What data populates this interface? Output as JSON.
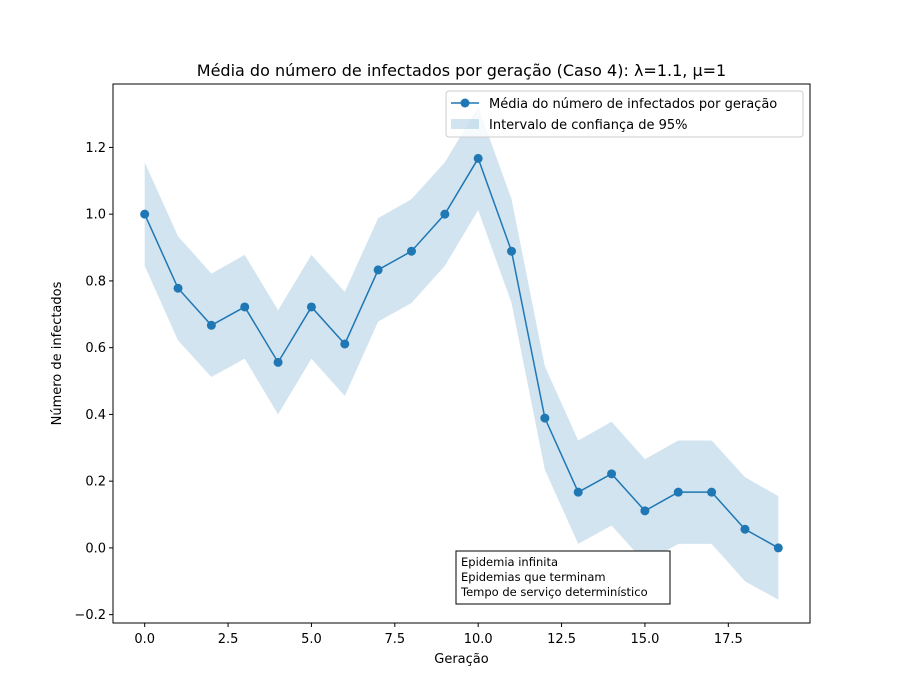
{
  "chart_data": {
    "type": "line",
    "title": "Média do número de infectados por geração (Caso 4): λ=1.1, μ=1",
    "xlabel": "Geração",
    "ylabel": "Número de infectados",
    "xlim": [
      -0.95,
      19.95
    ],
    "ylim": [
      -0.225,
      1.39
    ],
    "x_ticks": [
      0.0,
      2.5,
      5.0,
      7.5,
      10.0,
      12.5,
      15.0,
      17.5
    ],
    "x_tick_labels": [
      "0.0",
      "2.5",
      "5.0",
      "7.5",
      "10.0",
      "12.5",
      "15.0",
      "17.5"
    ],
    "y_ticks": [
      -0.2,
      0.0,
      0.2,
      0.4,
      0.6,
      0.8,
      1.0,
      1.2
    ],
    "y_tick_labels": [
      "−0.2",
      "0.0",
      "0.2",
      "0.4",
      "0.6",
      "0.8",
      "1.0",
      "1.2"
    ],
    "grid": false,
    "legend_position": "upper-right",
    "series": [
      {
        "name": "Média do número de infectados por geração",
        "color": "#1f77b4",
        "x": [
          0,
          1,
          2,
          3,
          4,
          5,
          6,
          7,
          8,
          9,
          10,
          11,
          12,
          13,
          14,
          15,
          16,
          17,
          18,
          19
        ],
        "values": [
          1.0,
          0.778,
          0.667,
          0.722,
          0.556,
          0.722,
          0.611,
          0.833,
          0.889,
          1.0,
          1.167,
          0.889,
          0.389,
          0.167,
          0.222,
          0.111,
          0.167,
          0.167,
          0.056,
          0.0
        ]
      }
    ],
    "confidence_band": {
      "name": "Intervalo de confiança de 95%",
      "color": "#1f77b4",
      "opacity": 0.2,
      "x": [
        0,
        1,
        2,
        3,
        4,
        5,
        6,
        7,
        8,
        9,
        10,
        11,
        12,
        13,
        14,
        15,
        16,
        17,
        18,
        19
      ],
      "lower": [
        0.845,
        0.622,
        0.512,
        0.567,
        0.4,
        0.567,
        0.455,
        0.678,
        0.734,
        0.845,
        1.012,
        0.734,
        0.234,
        0.012,
        0.067,
        -0.044,
        0.012,
        0.012,
        -0.1,
        -0.155
      ],
      "upper": [
        1.155,
        0.934,
        0.822,
        0.878,
        0.712,
        0.878,
        0.767,
        0.988,
        1.045,
        1.155,
        1.322,
        1.045,
        0.544,
        0.322,
        0.378,
        0.266,
        0.322,
        0.322,
        0.212,
        0.155
      ]
    },
    "annotation": {
      "lines": [
        "Epidemia infinita",
        "Epidemias que terminam",
        "Tempo de serviço determinístico"
      ]
    }
  }
}
